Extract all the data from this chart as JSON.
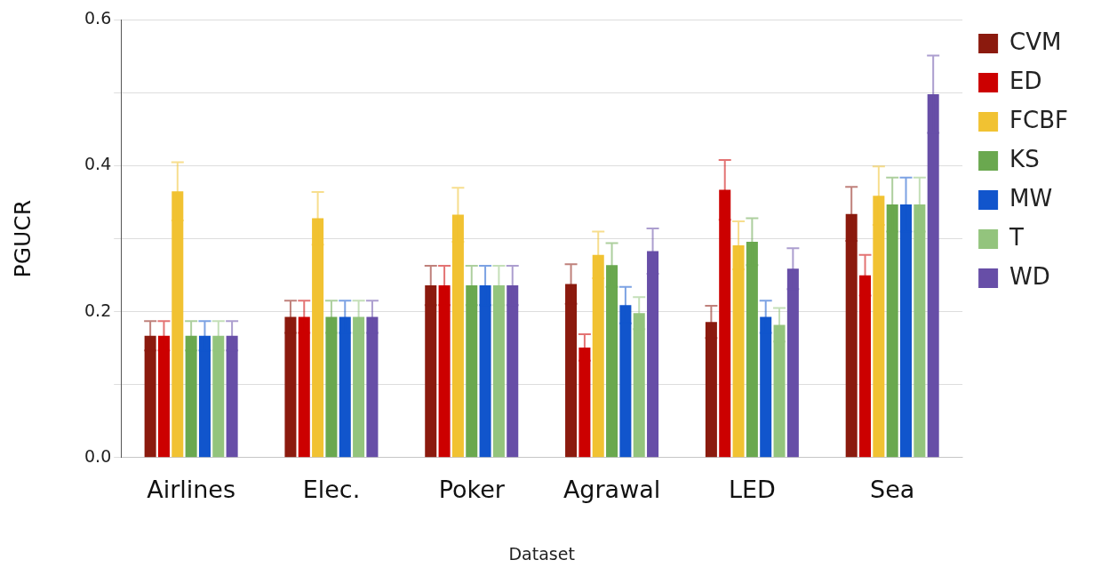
{
  "chart_data": {
    "type": "bar",
    "xlabel": "Dataset",
    "ylabel": "PGUCR",
    "categories": [
      "Airlines",
      "Elec.",
      "Poker",
      "Agrawal",
      "LED",
      "Sea"
    ],
    "series": [
      {
        "name": "CVM",
        "color": "#8b1a0e",
        "values": [
          0.167,
          0.193,
          0.236,
          0.238,
          0.186,
          0.334
        ],
        "errors": [
          0.02,
          0.022,
          0.027,
          0.027,
          0.022,
          0.037
        ]
      },
      {
        "name": "ED",
        "color": "#cc0000",
        "values": [
          0.167,
          0.193,
          0.236,
          0.151,
          0.367,
          0.25
        ],
        "errors": [
          0.02,
          0.022,
          0.027,
          0.018,
          0.041,
          0.028
        ]
      },
      {
        "name": "FCBF",
        "color": "#f1c232",
        "values": [
          0.365,
          0.328,
          0.333,
          0.278,
          0.291,
          0.359
        ],
        "errors": [
          0.04,
          0.036,
          0.037,
          0.032,
          0.033,
          0.04
        ]
      },
      {
        "name": "KS",
        "color": "#6aa84f",
        "values": [
          0.167,
          0.193,
          0.236,
          0.264,
          0.296,
          0.347
        ],
        "errors": [
          0.02,
          0.022,
          0.027,
          0.03,
          0.032,
          0.037
        ]
      },
      {
        "name": "MW",
        "color": "#1155cc",
        "values": [
          0.167,
          0.193,
          0.236,
          0.209,
          0.193,
          0.347
        ],
        "errors": [
          0.02,
          0.022,
          0.027,
          0.025,
          0.022,
          0.037
        ]
      },
      {
        "name": "T",
        "color": "#93c47d",
        "values": [
          0.167,
          0.193,
          0.236,
          0.198,
          0.182,
          0.347
        ],
        "errors": [
          0.02,
          0.022,
          0.027,
          0.022,
          0.023,
          0.037
        ]
      },
      {
        "name": "WD",
        "color": "#674ea7",
        "values": [
          0.167,
          0.193,
          0.236,
          0.283,
          0.259,
          0.498
        ],
        "errors": [
          0.02,
          0.022,
          0.027,
          0.031,
          0.028,
          0.053
        ]
      }
    ],
    "ylim": [
      0,
      0.6
    ],
    "yticks": [
      {
        "value": 0,
        "label": "0.0"
      },
      {
        "value": 0.1,
        "label": null
      },
      {
        "value": 0.2,
        "label": "0.2"
      },
      {
        "value": 0.3,
        "label": null
      },
      {
        "value": 0.4,
        "label": "0.4"
      },
      {
        "value": 0.5,
        "label": null
      },
      0.6
    ],
    "grid": "y",
    "legend": "right"
  }
}
